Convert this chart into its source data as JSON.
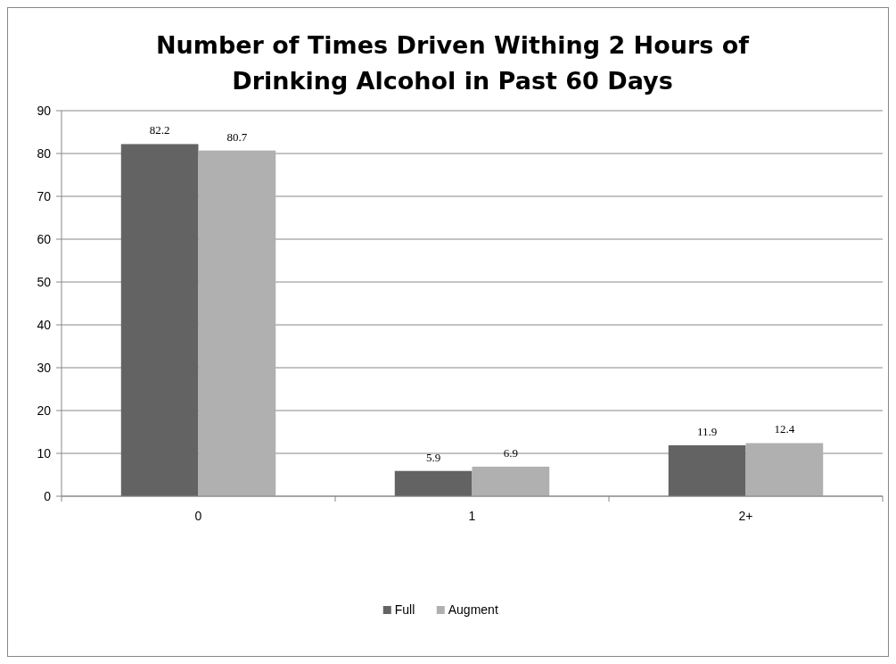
{
  "chart_data": {
    "type": "bar",
    "title": "Number of Times Driven Withing 2 Hours of Drinking Alcohol in Past 60 Days",
    "categories": [
      "0",
      "1",
      "2+"
    ],
    "series": [
      {
        "name": "Full",
        "color": "#636363",
        "values": [
          82.2,
          5.9,
          11.9
        ]
      },
      {
        "name": "Augment",
        "color": "#b0b0b0",
        "values": [
          80.7,
          6.9,
          12.4
        ]
      }
    ],
    "ylim": [
      0,
      90
    ],
    "yticks": [
      0,
      10,
      20,
      30,
      40,
      50,
      60,
      70,
      80,
      90
    ],
    "grid": "y",
    "legend": "bottom",
    "data_labels": true
  }
}
